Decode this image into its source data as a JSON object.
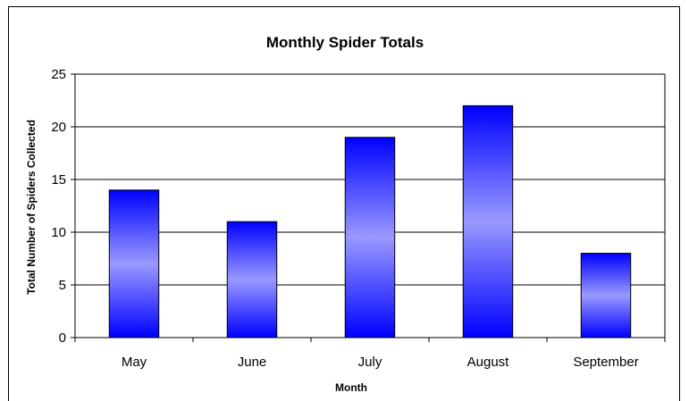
{
  "chart_data": {
    "type": "bar",
    "title": "Monthly Spider Totals",
    "xlabel": "Month",
    "ylabel": "Total Number of Spiders Collected",
    "categories": [
      "May",
      "June",
      "July",
      "August",
      "September"
    ],
    "values": [
      14,
      11,
      19,
      22,
      8
    ],
    "ylim": [
      0,
      25
    ],
    "yticks": [
      "0",
      "5",
      "10",
      "15",
      "20",
      "25"
    ],
    "ytick_values": [
      0,
      5,
      10,
      15,
      20,
      25
    ],
    "grid": "horizontal",
    "legend": "none",
    "colors": {
      "bar_edge": "#0000ff",
      "bar_light": "#9999ff",
      "bar_border": "#000000",
      "grid": "#000000"
    }
  }
}
